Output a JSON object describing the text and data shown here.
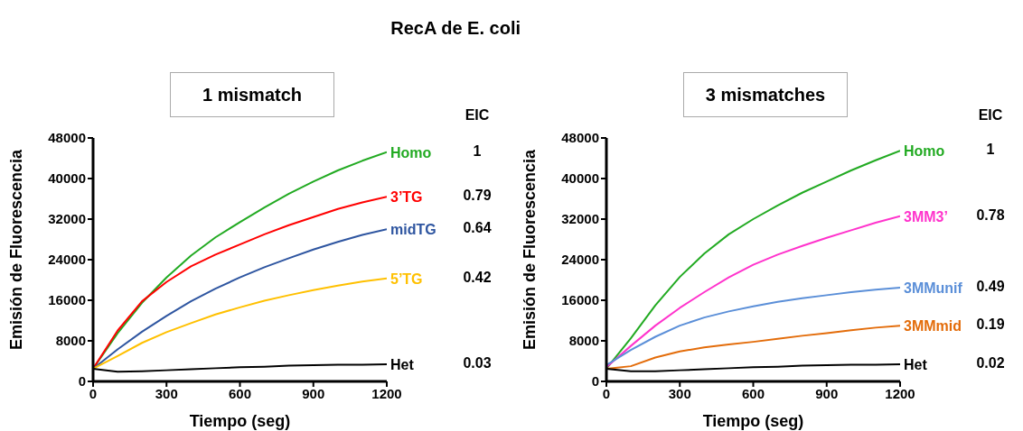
{
  "chart_data": [
    {
      "type": "line",
      "title": "RecA de E. coli",
      "subtitle": "1 mismatch",
      "xlabel": "Tiempo (seg)",
      "ylabel": "Emisión de Fluorescencia",
      "x": [
        0,
        100,
        200,
        300,
        400,
        500,
        600,
        700,
        800,
        900,
        1000,
        1100,
        1200
      ],
      "xlim": [
        0,
        1200
      ],
      "xticks": [
        0,
        300,
        600,
        900,
        1200
      ],
      "ylim": [
        0,
        48000
      ],
      "yticks": [
        0,
        8000,
        16000,
        24000,
        32000,
        40000,
        48000
      ],
      "grid": false,
      "legend": false,
      "marker": "none",
      "line_style": "solid",
      "annotations": [
        "EIC",
        "1",
        "0.79",
        "0.64",
        "0.42",
        "0.03"
      ],
      "series": [
        {
          "name": "Homo",
          "color": "#22aa22",
          "values": [
            2500,
            9500,
            15500,
            20500,
            24800,
            28400,
            31400,
            34300,
            37000,
            39400,
            41600,
            43500,
            45200
          ]
        },
        {
          "name": "3’TG",
          "color": "#ff0000",
          "values": [
            2500,
            10000,
            15800,
            19600,
            22700,
            25000,
            27000,
            29000,
            30800,
            32400,
            34000,
            35300,
            36400
          ]
        },
        {
          "name": "midTG",
          "color": "#2e55a0",
          "values": [
            2500,
            6300,
            9800,
            12900,
            15800,
            18300,
            20500,
            22500,
            24300,
            26000,
            27500,
            28900,
            30000
          ]
        },
        {
          "name": "5’TG",
          "color": "#ffc000",
          "values": [
            2500,
            5000,
            7600,
            9700,
            11500,
            13200,
            14600,
            15900,
            17000,
            18000,
            18900,
            19700,
            20300
          ]
        },
        {
          "name": "Het",
          "color": "#000000",
          "values": [
            2500,
            1900,
            2000,
            2200,
            2400,
            2600,
            2800,
            2900,
            3100,
            3200,
            3300,
            3300,
            3400
          ]
        }
      ]
    },
    {
      "type": "line",
      "subtitle": "3 mismatches",
      "xlabel": "Tiempo (seg)",
      "ylabel": "Emisión de Fluorescencia",
      "x": [
        0,
        100,
        200,
        300,
        400,
        500,
        600,
        700,
        800,
        900,
        1000,
        1100,
        1200
      ],
      "xlim": [
        0,
        1200
      ],
      "xticks": [
        0,
        300,
        600,
        900,
        1200
      ],
      "ylim": [
        0,
        48000
      ],
      "yticks": [
        0,
        8000,
        16000,
        24000,
        32000,
        40000,
        48000
      ],
      "grid": false,
      "legend": false,
      "marker": "none",
      "line_style": "solid",
      "annotations": [
        "EIC",
        "1",
        "0.78",
        "0.49",
        "0.19",
        "0.02"
      ],
      "series": [
        {
          "name": "Homo",
          "color": "#22aa22",
          "values": [
            2500,
            8500,
            15000,
            20600,
            25200,
            29000,
            32000,
            34700,
            37200,
            39400,
            41600,
            43600,
            45500
          ]
        },
        {
          "name": "3MM3’",
          "color": "#ff33cc",
          "values": [
            2800,
            7000,
            11000,
            14500,
            17600,
            20500,
            23000,
            25000,
            26700,
            28300,
            29800,
            31300,
            32600
          ]
        },
        {
          "name": "3MMunif",
          "color": "#5b8fd8",
          "values": [
            3200,
            6200,
            8800,
            11000,
            12600,
            13800,
            14800,
            15700,
            16400,
            17000,
            17600,
            18100,
            18500
          ]
        },
        {
          "name": "3MMmid",
          "color": "#e36c0a",
          "values": [
            2500,
            3000,
            4700,
            5900,
            6700,
            7300,
            7800,
            8400,
            9000,
            9500,
            10100,
            10600,
            11000
          ]
        },
        {
          "name": "Het",
          "color": "#000000",
          "values": [
            2500,
            2000,
            2000,
            2200,
            2400,
            2600,
            2800,
            2900,
            3100,
            3200,
            3300,
            3300,
            3400
          ]
        }
      ]
    }
  ]
}
